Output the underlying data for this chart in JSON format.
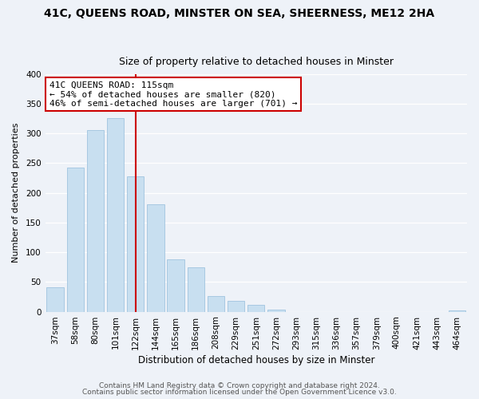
{
  "title": "41C, QUEENS ROAD, MINSTER ON SEA, SHEERNESS, ME12 2HA",
  "subtitle": "Size of property relative to detached houses in Minster",
  "xlabel": "Distribution of detached houses by size in Minster",
  "ylabel": "Number of detached properties",
  "bar_color": "#c8dff0",
  "bar_edge_color": "#a0c4df",
  "categories": [
    "37sqm",
    "58sqm",
    "80sqm",
    "101sqm",
    "122sqm",
    "144sqm",
    "165sqm",
    "186sqm",
    "208sqm",
    "229sqm",
    "251sqm",
    "272sqm",
    "293sqm",
    "315sqm",
    "336sqm",
    "357sqm",
    "379sqm",
    "400sqm",
    "421sqm",
    "443sqm",
    "464sqm"
  ],
  "values": [
    41,
    242,
    305,
    325,
    228,
    181,
    88,
    74,
    26,
    18,
    11,
    4,
    0,
    0,
    0,
    0,
    0,
    0,
    0,
    0,
    2
  ],
  "marker_index": 4,
  "marker_label": "41C QUEENS ROAD: 115sqm",
  "annotation_line1": "← 54% of detached houses are smaller (820)",
  "annotation_line2": "46% of semi-detached houses are larger (701) →",
  "annotation_box_color": "#ffffff",
  "annotation_box_edge_color": "#cc0000",
  "vline_color": "#cc0000",
  "ylim": [
    0,
    400
  ],
  "yticks": [
    0,
    50,
    100,
    150,
    200,
    250,
    300,
    350,
    400
  ],
  "footer1": "Contains HM Land Registry data © Crown copyright and database right 2024.",
  "footer2": "Contains public sector information licensed under the Open Government Licence v3.0.",
  "background_color": "#eef2f8",
  "grid_color": "#ffffff",
  "title_fontsize": 10,
  "subtitle_fontsize": 9,
  "xlabel_fontsize": 8.5,
  "ylabel_fontsize": 8,
  "tick_fontsize": 7.5,
  "footer_fontsize": 6.5,
  "annot_fontsize": 8
}
